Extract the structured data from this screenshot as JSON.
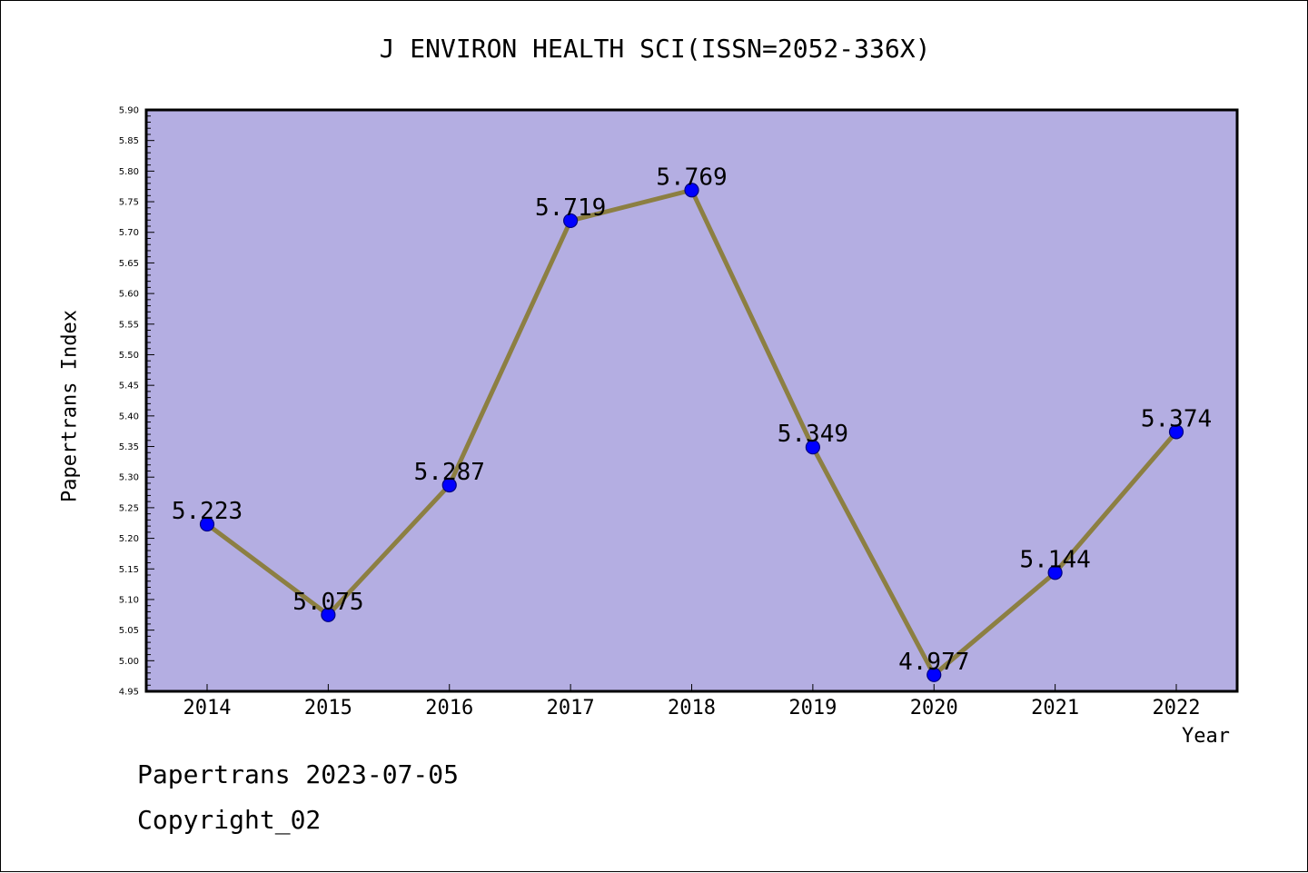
{
  "footer": {
    "line1": "Papertrans 2023-07-05",
    "line2": "Copyright_02"
  },
  "colors": {
    "plot_background": "#b4aee2",
    "line": "#8c7f42",
    "marker": "#0000ff",
    "marker_edge": "#000080",
    "frame": "#000000"
  },
  "chart_data": {
    "type": "line",
    "title": "J ENVIRON HEALTH SCI(ISSN=2052-336X)",
    "xlabel": "Year",
    "ylabel": "Papertrans Index",
    "categories": [
      "2014",
      "2015",
      "2016",
      "2017",
      "2018",
      "2019",
      "2020",
      "2021",
      "2022"
    ],
    "series": [
      {
        "values": [
          5.223,
          5.075,
          5.287,
          5.719,
          5.769,
          5.349,
          4.977,
          5.144,
          5.374
        ],
        "labels": [
          "5.223",
          "5.075",
          "5.287",
          "5.719",
          "5.769",
          "5.349",
          "4.977",
          "5.144",
          "5.374"
        ]
      }
    ],
    "ylim": [
      4.95,
      5.9
    ],
    "ytick_labels": [
      "4.95",
      "5.00",
      "5.05",
      "5.10",
      "5.15",
      "5.20",
      "5.25",
      "5.30",
      "5.35",
      "5.40",
      "5.45",
      "5.50",
      "5.55",
      "5.60",
      "5.65",
      "5.70",
      "5.75",
      "5.80",
      "5.85",
      "5.90"
    ],
    "grid": false,
    "legend": "none"
  }
}
